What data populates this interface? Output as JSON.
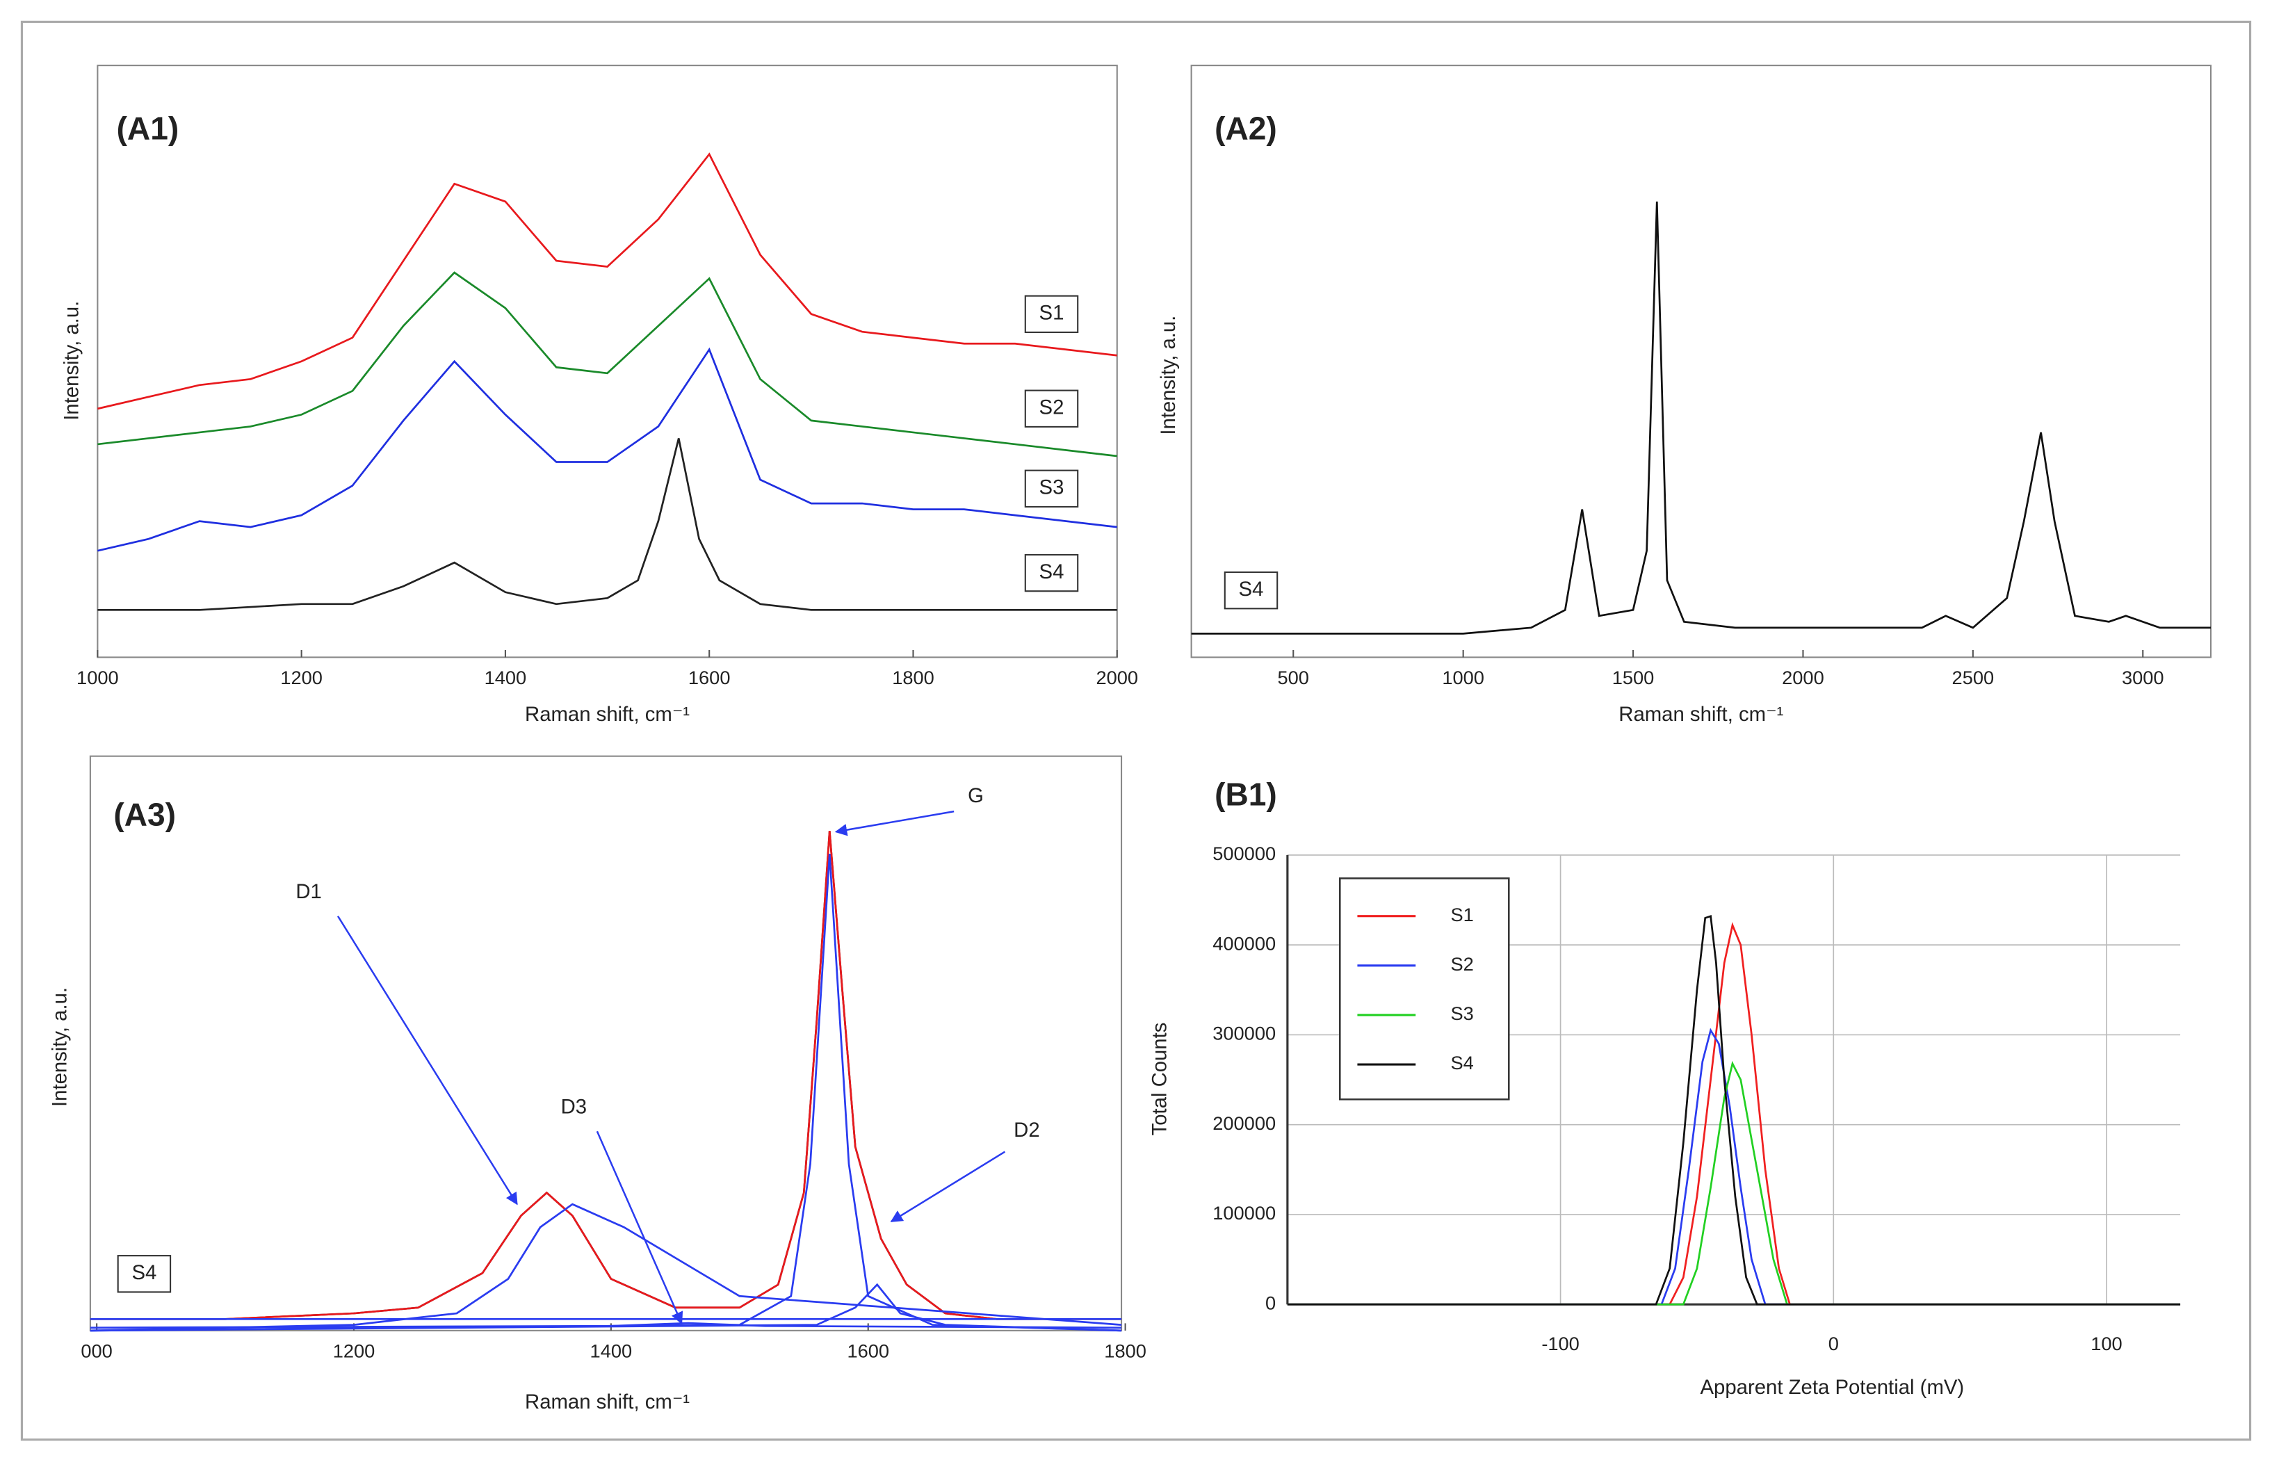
{
  "chart_data": [
    {
      "type": "line",
      "title": "(A1)",
      "xlabel": "Raman shift, cm⁻¹",
      "ylabel": "Intensity, a.u.",
      "xlim": [
        1000,
        2000
      ],
      "ylim": [
        0,
        100
      ],
      "xticks": [
        1000,
        1200,
        1400,
        1600,
        1800,
        2000
      ],
      "series": [
        {
          "name": "S1",
          "color": "#e8191d",
          "x": [
            1000,
            1050,
            1100,
            1150,
            1200,
            1250,
            1300,
            1350,
            1400,
            1450,
            1500,
            1550,
            1600,
            1650,
            1700,
            1750,
            1800,
            1850,
            1900,
            1950,
            2000
          ],
          "values": [
            42,
            44,
            46,
            47,
            50,
            54,
            67,
            80,
            77,
            67,
            66,
            74,
            85,
            68,
            58,
            55,
            54,
            53,
            53,
            52,
            51
          ]
        },
        {
          "name": "S2",
          "color": "#1a8a2a",
          "x": [
            1000,
            1050,
            1100,
            1150,
            1200,
            1250,
            1300,
            1350,
            1400,
            1450,
            1500,
            1550,
            1600,
            1650,
            1700,
            1750,
            1800,
            1850,
            1900,
            1950,
            2000
          ],
          "values": [
            36,
            37,
            38,
            39,
            41,
            45,
            56,
            65,
            59,
            49,
            48,
            56,
            64,
            47,
            40,
            39,
            38,
            37,
            36,
            35,
            34
          ]
        },
        {
          "name": "S3",
          "color": "#1f2fe0",
          "x": [
            1000,
            1050,
            1100,
            1150,
            1200,
            1250,
            1300,
            1350,
            1400,
            1450,
            1500,
            1550,
            1600,
            1650,
            1700,
            1750,
            1800,
            1850,
            1900,
            1950,
            2000
          ],
          "values": [
            18,
            20,
            23,
            22,
            24,
            29,
            40,
            50,
            41,
            33,
            33,
            39,
            52,
            30,
            26,
            26,
            25,
            25,
            24,
            23,
            22
          ]
        },
        {
          "name": "S4",
          "color": "#222222",
          "x": [
            1000,
            1100,
            1200,
            1250,
            1300,
            1350,
            1400,
            1450,
            1500,
            1530,
            1550,
            1570,
            1590,
            1610,
            1650,
            1700,
            1800,
            1900,
            2000
          ],
          "values": [
            8,
            8,
            9,
            9,
            12,
            16,
            11,
            9,
            10,
            13,
            23,
            37,
            20,
            13,
            9,
            8,
            8,
            8,
            8
          ]
        }
      ]
    },
    {
      "type": "line",
      "title": "(A2)",
      "xlabel": "Raman shift, cm⁻¹",
      "ylabel": "Intensity, a.u.",
      "xlim": [
        200,
        3200
      ],
      "ylim": [
        0,
        100
      ],
      "xticks": [
        500,
        1000,
        1500,
        2000,
        2500,
        3000
      ],
      "series": [
        {
          "name": "S4",
          "color": "#111111",
          "x": [
            200,
            500,
            800,
            1000,
            1200,
            1300,
            1350,
            1400,
            1500,
            1540,
            1570,
            1600,
            1650,
            1800,
            2000,
            2200,
            2350,
            2420,
            2500,
            2600,
            2650,
            2700,
            2740,
            2800,
            2900,
            2950,
            3050,
            3200
          ],
          "values": [
            4,
            4,
            4,
            4,
            5,
            8,
            25,
            7,
            8,
            18,
            77,
            13,
            6,
            5,
            5,
            5,
            5,
            7,
            5,
            10,
            23,
            38,
            23,
            7,
            6,
            7,
            5,
            5
          ]
        }
      ]
    },
    {
      "type": "line",
      "title": "(A3)",
      "xlabel": "Raman shift, cm⁻¹",
      "ylabel": "Intensity, a.u.",
      "xlim": [
        995,
        1797
      ],
      "ylim": [
        0,
        100
      ],
      "xticks": [
        {
          "value": 1000,
          "label": "000"
        },
        1200,
        1400,
        1600,
        1800
      ],
      "annotations": [
        "D1",
        "D3",
        "G",
        "D2"
      ],
      "series": [
        {
          "name": "S4",
          "color": "#3a2a2a",
          "x": [
            995,
            1100,
            1200,
            1250,
            1300,
            1330,
            1350,
            1370,
            1400,
            1450,
            1500,
            1530,
            1550,
            1560,
            1570,
            1580,
            1590,
            1610,
            1630,
            1660,
            1700,
            1797
          ],
          "values": [
            2,
            2,
            3,
            4,
            10,
            20,
            24,
            20,
            9,
            4,
            4,
            8,
            24,
            54,
            87,
            59,
            32,
            16,
            8,
            3,
            2,
            2
          ]
        },
        {
          "color": "#e8191d",
          "x": [
            995,
            1100,
            1200,
            1250,
            1300,
            1330,
            1350,
            1370,
            1400,
            1450,
            1500,
            1530,
            1550,
            1560,
            1570,
            1580,
            1590,
            1610,
            1630,
            1660,
            1700,
            1797
          ],
          "values": [
            2,
            2,
            3,
            4,
            10,
            20,
            24,
            20,
            9,
            4,
            4,
            8,
            24,
            54,
            87,
            59,
            32,
            16,
            8,
            3,
            2,
            2
          ]
        },
        {
          "color": "#2a3cf0",
          "x": [
            995,
            1200,
            1280,
            1320,
            1345,
            1370,
            1410,
            1500,
            1797
          ],
          "values": [
            0,
            1,
            3,
            9,
            18,
            22,
            18,
            6,
            1
          ]
        },
        {
          "color": "#2a3cf0",
          "x": [
            995,
            1400,
            1460,
            1520,
            1797
          ],
          "values": [
            0.5,
            0.8,
            1.3,
            0.8,
            0.5
          ]
        },
        {
          "color": "#2a3cf0",
          "x": [
            995,
            1500,
            1540,
            1555,
            1570,
            1585,
            1600,
            1650,
            1797
          ],
          "values": [
            0,
            1,
            6,
            29,
            83,
            29,
            6,
            1,
            0
          ]
        },
        {
          "color": "#2a3cf0",
          "x": [
            995,
            1560,
            1590,
            1607,
            1625,
            1660,
            1797
          ],
          "values": [
            0,
            1,
            4,
            8,
            3,
            1,
            0
          ]
        },
        {
          "color": "#2a3cf0",
          "x": [
            995,
            1797
          ],
          "values": [
            2,
            2
          ]
        }
      ]
    },
    {
      "type": "line",
      "title": "(B1)",
      "xlabel": "Apparent Zeta Potential (mV)",
      "ylabel": "Total Counts",
      "xlim": [
        -200,
        127
      ],
      "ylim": [
        0,
        500000
      ],
      "xticks": [
        -100,
        0,
        100
      ],
      "yticks": [
        0,
        100000,
        200000,
        300000,
        400000,
        500000
      ],
      "grid": true,
      "legend": "upper left",
      "series": [
        {
          "name": "S1",
          "color": "#f02020",
          "x": [
            -200,
            -60,
            -55,
            -50,
            -45,
            -40,
            -37,
            -34,
            -30,
            -25,
            -20,
            -16,
            127
          ],
          "values": [
            0,
            0,
            30000,
            120000,
            250000,
            380000,
            422000,
            400000,
            300000,
            150000,
            40000,
            0,
            0
          ]
        },
        {
          "name": "S2",
          "color": "#2a3cf0",
          "x": [
            -200,
            -63,
            -58,
            -53,
            -48,
            -45,
            -42,
            -38,
            -34,
            -30,
            -25,
            127
          ],
          "values": [
            0,
            0,
            40000,
            150000,
            270000,
            305000,
            290000,
            220000,
            130000,
            50000,
            0,
            0
          ]
        },
        {
          "name": "S3",
          "color": "#22d022",
          "x": [
            -200,
            -55,
            -50,
            -45,
            -40,
            -37,
            -34,
            -28,
            -22,
            -17,
            127
          ],
          "values": [
            0,
            0,
            40000,
            130000,
            230000,
            268000,
            250000,
            150000,
            50000,
            0,
            0
          ]
        },
        {
          "name": "S4",
          "color": "#111111",
          "x": [
            -200,
            -65,
            -60,
            -55,
            -50,
            -47,
            -45,
            -43,
            -40,
            -36,
            -32,
            -28,
            127
          ],
          "values": [
            0,
            0,
            40000,
            180000,
            350000,
            430000,
            432000,
            380000,
            250000,
            120000,
            30000,
            0,
            0
          ]
        }
      ]
    }
  ]
}
